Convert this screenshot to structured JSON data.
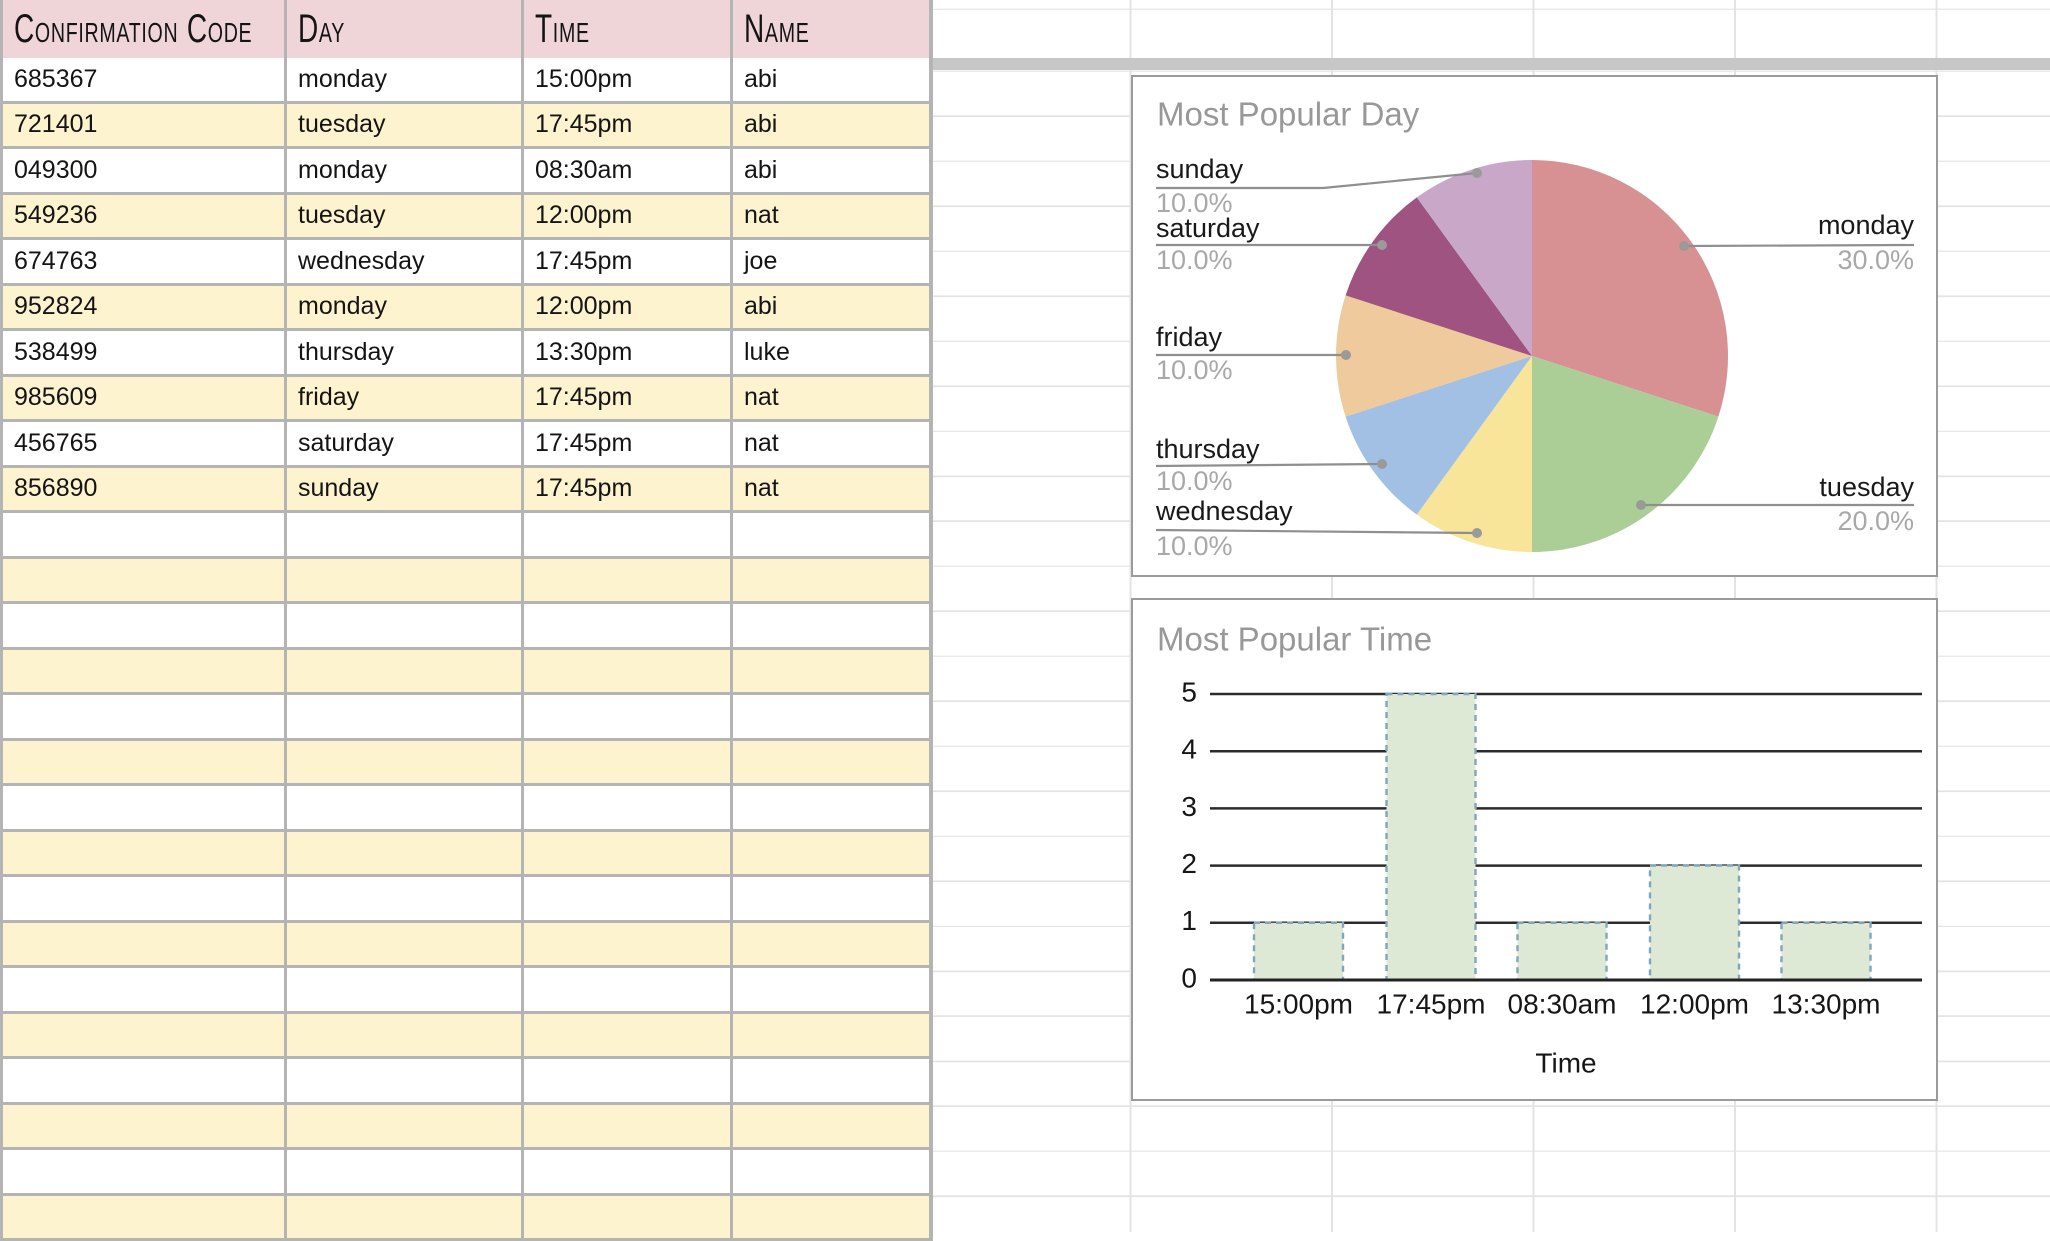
{
  "table": {
    "headers": [
      "Confirmation Code",
      "Day",
      "Time",
      "Name"
    ],
    "rows": [
      [
        "685367",
        "monday",
        "15:00pm",
        "abi"
      ],
      [
        "721401",
        "tuesday",
        "17:45pm",
        "abi"
      ],
      [
        "049300",
        "monday",
        "08:30am",
        "abi"
      ],
      [
        "549236",
        "tuesday",
        "12:00pm",
        "nat"
      ],
      [
        "674763",
        "wednesday",
        "17:45pm",
        "joe"
      ],
      [
        "952824",
        "monday",
        "12:00pm",
        "abi"
      ],
      [
        "538499",
        "thursday",
        "13:30pm",
        "luke"
      ],
      [
        "985609",
        "friday",
        "17:45pm",
        "nat"
      ],
      [
        "456765",
        "saturday",
        "17:45pm",
        "nat"
      ],
      [
        "856890",
        "sunday",
        "17:45pm",
        "nat"
      ]
    ],
    "empty_row_count": 16,
    "header_bg": "#f0d5d8",
    "stripe_bg": "#fef3cf",
    "border_color": "#b4b4b4"
  },
  "pie_chart": {
    "title": "Most Popular Day",
    "slices": [
      {
        "label": "monday",
        "pct_text": "30.0%",
        "value": 30,
        "color": "#d79192",
        "side": "right"
      },
      {
        "label": "tuesday",
        "pct_text": "20.0%",
        "value": 20,
        "color": "#abce97",
        "side": "right"
      },
      {
        "label": "wednesday",
        "pct_text": "10.0%",
        "value": 10,
        "color": "#f8e59a",
        "side": "left"
      },
      {
        "label": "thursday",
        "pct_text": "10.0%",
        "value": 10,
        "color": "#a2c0e4",
        "side": "left"
      },
      {
        "label": "friday",
        "pct_text": "10.0%",
        "value": 10,
        "color": "#eeca9c",
        "side": "left"
      },
      {
        "label": "saturday",
        "pct_text": "10.0%",
        "value": 10,
        "color": "#9e5380",
        "side": "left"
      },
      {
        "label": "sunday",
        "pct_text": "10.0%",
        "value": 10,
        "color": "#c8a7c9",
        "side": "left"
      }
    ]
  },
  "bar_chart": {
    "title": "Most Popular Time",
    "categories": [
      "15:00pm",
      "17:45pm",
      "08:30am",
      "12:00pm",
      "13:30pm"
    ],
    "values": [
      1,
      5,
      1,
      2,
      1
    ],
    "y_ticks": [
      0,
      1,
      2,
      3,
      4,
      5
    ],
    "xlabel": "Time",
    "bar_fill": "#dde9d5",
    "bar_stroke": "#7ea6bf"
  },
  "chart_data": [
    {
      "type": "pie",
      "title": "Most Popular Day",
      "labels": [
        "monday",
        "tuesday",
        "wednesday",
        "thursday",
        "friday",
        "saturday",
        "sunday"
      ],
      "values": [
        30.0,
        20.0,
        10.0,
        10.0,
        10.0,
        10.0,
        10.0
      ],
      "unit": "percent",
      "legend_position": "outside-callouts"
    },
    {
      "type": "bar",
      "title": "Most Popular Time",
      "categories": [
        "15:00pm",
        "17:45pm",
        "08:30am",
        "12:00pm",
        "13:30pm"
      ],
      "values": [
        1,
        5,
        1,
        2,
        1
      ],
      "xlabel": "Time",
      "ylabel": "",
      "ylim": [
        0,
        5
      ],
      "grid": true
    }
  ],
  "colors": {
    "title_gray": "#989898",
    "pct_gray": "#a8a8a8",
    "label_black": "#191919",
    "leader_line": "#8f8f8f",
    "leader_dot": "#9a9a9a",
    "chart_border": "#9b9b9b",
    "grid_black": "#2b2b2b",
    "sheet_gridline": "#e3e3e3",
    "header_band": "#c7c7c7"
  }
}
